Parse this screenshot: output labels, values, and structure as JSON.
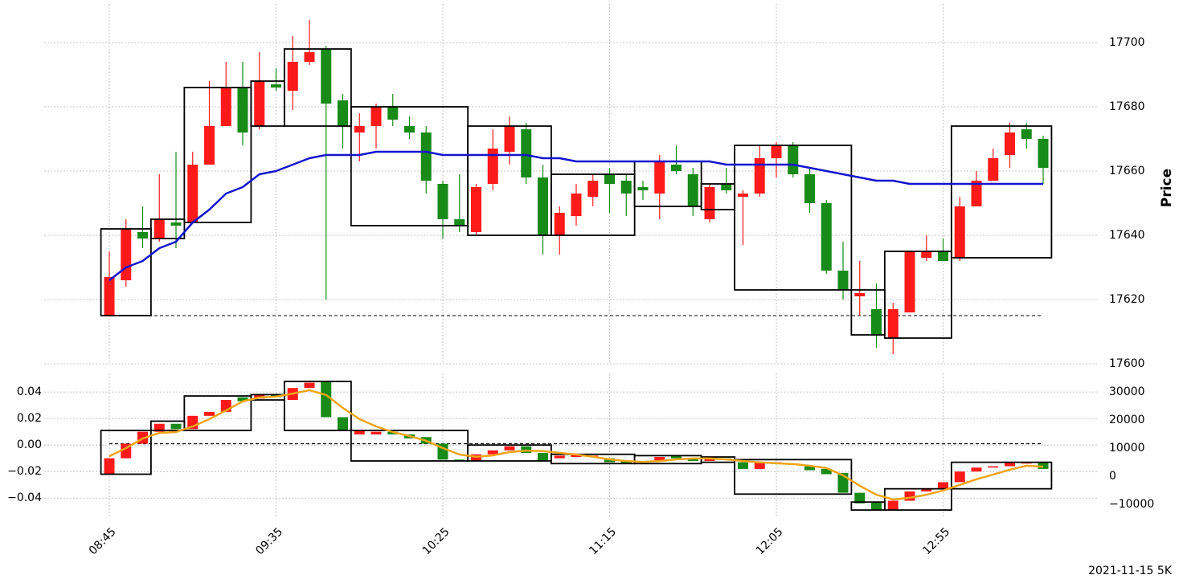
{
  "caption": "2021-11-15 5K",
  "chart_data": [
    {
      "type": "candlestick",
      "ylabel": "Price",
      "yaxis_side": "right",
      "grid": true,
      "up_color": "#ff1a1a",
      "down_color": "#178a17",
      "box_color": "#000000",
      "ylim": [
        17600,
        17712
      ],
      "yticks": [
        17600,
        17620,
        17640,
        17660,
        17680,
        17700
      ],
      "open": [
        17615,
        17626,
        17641,
        17639,
        17644,
        17644,
        17662,
        17674,
        17686,
        17674,
        17687,
        17685,
        17694,
        17698,
        17682,
        17672,
        17674,
        17680,
        17674,
        17672,
        17656,
        17645,
        17641,
        17656,
        17666,
        17673,
        17658,
        17640,
        17646,
        17652,
        17659,
        17657,
        17655,
        17653,
        17662,
        17659,
        17645,
        17656,
        17652,
        17653,
        17664,
        17668,
        17659,
        17650,
        17629,
        17621,
        17617,
        17608,
        17616,
        17633,
        17635,
        17633,
        17649,
        17657,
        17665,
        17673,
        17670
      ],
      "high": [
        17635,
        17645,
        17649,
        17659,
        17666,
        17666,
        17688,
        17694,
        17694,
        17697,
        17692,
        17702,
        17707,
        17699,
        17684,
        17678,
        17681,
        17684,
        17677,
        17674,
        17657,
        17659,
        17656,
        17673,
        17677,
        17675,
        17662,
        17649,
        17656,
        17659,
        17661,
        17659,
        17657,
        17665,
        17668,
        17661,
        17656,
        17661,
        17654,
        17668,
        17669,
        17669,
        17661,
        17651,
        17638,
        17632,
        17625,
        17619,
        17635,
        17640,
        17639,
        17652,
        17660,
        17667,
        17675,
        17675,
        17671
      ],
      "low": [
        17615,
        17624,
        17636,
        17638,
        17636,
        17644,
        17662,
        17674,
        17668,
        17673,
        17685,
        17679,
        17693,
        17620,
        17667,
        17663,
        17667,
        17674,
        17670,
        17653,
        17639,
        17641,
        17640,
        17654,
        17662,
        17656,
        17634,
        17634,
        17643,
        17649,
        17647,
        17646,
        17651,
        17645,
        17659,
        17646,
        17644,
        17653,
        17637,
        17652,
        17658,
        17658,
        17647,
        17628,
        17620,
        17615,
        17605,
        17603,
        17616,
        17632,
        17632,
        17632,
        17649,
        17657,
        17661,
        17667,
        17656
      ],
      "close": [
        17627,
        17642,
        17639,
        17645,
        17643,
        17662,
        17674,
        17686,
        17672,
        17688,
        17686,
        17694,
        17697,
        17681,
        17674,
        17674,
        17680,
        17676,
        17672,
        17657,
        17645,
        17643,
        17655,
        17667,
        17674,
        17658,
        17640,
        17647,
        17653,
        17657,
        17656,
        17653,
        17654,
        17663,
        17660,
        17649,
        17655,
        17654,
        17653,
        17664,
        17668,
        17659,
        17650,
        17629,
        17623,
        17622,
        17609,
        17617,
        17635,
        17635,
        17632,
        17649,
        17657,
        17664,
        17672,
        17670,
        17661
      ],
      "ma": {
        "color": "#1414d0",
        "values": [
          17626,
          17630,
          17632,
          17636,
          17638,
          17644,
          17648,
          17653,
          17655,
          17659,
          17660,
          17662,
          17664,
          17665,
          17665,
          17665,
          17666,
          17666,
          17666,
          17666,
          17665,
          17665,
          17665,
          17665,
          17665,
          17665,
          17664,
          17664,
          17663,
          17663,
          17663,
          17663,
          17663,
          17663,
          17663,
          17663,
          17663,
          17662,
          17662,
          17662,
          17662,
          17662,
          17661,
          17660,
          17659,
          17658,
          17657,
          17657,
          17656,
          17656,
          17656,
          17656,
          17656,
          17656,
          17656,
          17656,
          17656
        ]
      },
      "hline": 17615,
      "boxes": [
        {
          "start": 0,
          "end": 2,
          "low": 17615,
          "high": 17642
        },
        {
          "start": 3,
          "end": 4,
          "low": 17639,
          "high": 17645
        },
        {
          "start": 5,
          "end": 8,
          "low": 17644,
          "high": 17686
        },
        {
          "start": 9,
          "end": 10,
          "low": 17674,
          "high": 17688
        },
        {
          "start": 11,
          "end": 14,
          "low": 17674,
          "high": 17698
        },
        {
          "start": 15,
          "end": 21,
          "low": 17643,
          "high": 17680
        },
        {
          "start": 22,
          "end": 26,
          "low": 17640,
          "high": 17674
        },
        {
          "start": 27,
          "end": 31,
          "low": 17640,
          "high": 17659
        },
        {
          "start": 32,
          "end": 35,
          "low": 17649,
          "high": 17663
        },
        {
          "start": 36,
          "end": 37,
          "low": 17648,
          "high": 17656
        },
        {
          "start": 38,
          "end": 44,
          "low": 17623,
          "high": 17668
        },
        {
          "start": 45,
          "end": 46,
          "low": 17609,
          "high": 17623
        },
        {
          "start": 47,
          "end": 50,
          "low": 17608,
          "high": 17635
        },
        {
          "start": 51,
          "end": 56,
          "low": 17633,
          "high": 17674
        }
      ]
    },
    {
      "type": "candlestick",
      "yaxis_side": "left",
      "grid": true,
      "up_color": "#ff1a1a",
      "down_color": "#178a17",
      "box_color": "#000000",
      "categories": [
        "08:45",
        null,
        null,
        null,
        null,
        null,
        null,
        null,
        null,
        null,
        "09:35",
        null,
        null,
        null,
        null,
        null,
        null,
        null,
        null,
        null,
        "10:25",
        null,
        null,
        null,
        null,
        null,
        null,
        null,
        null,
        null,
        "11:15",
        null,
        null,
        null,
        null,
        null,
        null,
        null,
        null,
        null,
        "12:05",
        null,
        null,
        null,
        null,
        null,
        null,
        null,
        null,
        null,
        "12:55",
        null,
        null,
        null,
        null,
        null,
        null
      ],
      "ylim": [
        -0.055,
        0.054
      ],
      "yticks": [
        {
          "value": -0.04,
          "label": "−0.04"
        },
        {
          "value": -0.02,
          "label": "−0.02"
        },
        {
          "value": 0,
          "label": "0.00"
        },
        0.02,
        0.04
      ],
      "y2lim": [
        -14860,
        36570
      ],
      "y2ticks": [
        {
          "value": -10000,
          "label": "−10000"
        },
        0,
        10000,
        20000,
        30000
      ],
      "open": [
        -0.022,
        -0.01,
        0.001,
        0.01,
        0.016,
        0.012,
        0.022,
        0.025,
        0.036,
        0.035,
        0.038,
        0.034,
        0.043,
        0.048,
        0.021,
        0.008,
        0.008,
        0.01,
        0.008,
        0.006,
        0.001,
        -0.011,
        -0.012,
        -0.007,
        -0.004,
        -0.001,
        -0.006,
        -0.01,
        -0.009,
        -0.009,
        -0.01,
        -0.012,
        -0.012,
        -0.012,
        -0.008,
        -0.01,
        -0.012,
        -0.01,
        -0.013,
        -0.018,
        -0.014,
        -0.014,
        -0.016,
        -0.018,
        -0.021,
        -0.036,
        -0.043,
        -0.049,
        -0.042,
        -0.035,
        -0.033,
        -0.028,
        -0.02,
        -0.017,
        -0.016,
        -0.014,
        -0.013
      ],
      "close": [
        -0.01,
        0.001,
        0.01,
        0.016,
        0.012,
        0.022,
        0.025,
        0.034,
        0.033,
        0.038,
        0.036,
        0.043,
        0.047,
        0.021,
        0.011,
        0.011,
        0.01,
        0.008,
        0.005,
        0.001,
        -0.011,
        -0.012,
        -0.007,
        -0.004,
        -0.001,
        -0.006,
        -0.012,
        -0.008,
        -0.007,
        -0.008,
        -0.013,
        -0.014,
        -0.013,
        -0.009,
        -0.01,
        -0.012,
        -0.009,
        -0.011,
        -0.018,
        -0.013,
        -0.013,
        -0.015,
        -0.019,
        -0.022,
        -0.036,
        -0.044,
        -0.049,
        -0.042,
        -0.035,
        -0.033,
        -0.028,
        -0.02,
        -0.017,
        -0.016,
        -0.013,
        -0.013,
        -0.018
      ],
      "ma": {
        "color": "#f0a418",
        "axis": "y2",
        "values": [
          7100,
          10000,
          13400,
          15400,
          15700,
          17700,
          20300,
          23400,
          26600,
          28000,
          28300,
          29400,
          30600,
          28900,
          24300,
          20300,
          17700,
          15700,
          14300,
          12600,
          10000,
          7700,
          6900,
          7400,
          8600,
          9100,
          8900,
          8300,
          7700,
          6900,
          6000,
          5400,
          5100,
          5400,
          6000,
          6300,
          6300,
          6000,
          5400,
          4900,
          4600,
          4300,
          3700,
          2900,
          300,
          -3400,
          -6600,
          -8300,
          -7700,
          -6600,
          -5100,
          -3100,
          -1100,
          600,
          2300,
          3700,
          3400
        ]
      },
      "hline": 0.001,
      "boxes": [
        {
          "start": 0,
          "end": 2,
          "low": -0.022,
          "high": 0.011
        },
        {
          "start": 3,
          "end": 4,
          "low": 0.011,
          "high": 0.018
        },
        {
          "start": 5,
          "end": 8,
          "low": 0.011,
          "high": 0.037
        },
        {
          "start": 9,
          "end": 10,
          "low": 0.034,
          "high": 0.038
        },
        {
          "start": 11,
          "end": 14,
          "low": 0.011,
          "high": 0.048
        },
        {
          "start": 15,
          "end": 21,
          "low": -0.012,
          "high": 0.011
        },
        {
          "start": 22,
          "end": 26,
          "low": -0.012,
          "high": 0.0
        },
        {
          "start": 27,
          "end": 31,
          "low": -0.014,
          "high": -0.007
        },
        {
          "start": 32,
          "end": 35,
          "low": -0.014,
          "high": -0.008
        },
        {
          "start": 36,
          "end": 37,
          "low": -0.013,
          "high": -0.009
        },
        {
          "start": 38,
          "end": 44,
          "low": -0.037,
          "high": -0.011
        },
        {
          "start": 45,
          "end": 46,
          "low": -0.049,
          "high": -0.043
        },
        {
          "start": 47,
          "end": 50,
          "low": -0.049,
          "high": -0.033
        },
        {
          "start": 51,
          "end": 56,
          "low": -0.033,
          "high": -0.013
        }
      ]
    }
  ]
}
